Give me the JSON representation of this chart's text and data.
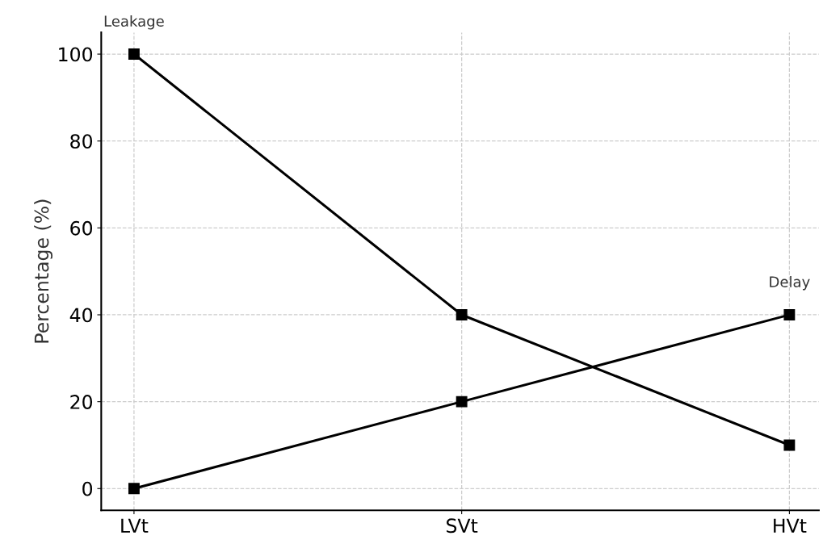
{
  "chart_data": {
    "type": "line",
    "ylabel": "Percentage (%)",
    "categories": [
      "LVt",
      "SVt",
      "HVt"
    ],
    "series": [
      {
        "name": "Leakage",
        "color": "#000000",
        "values": [
          100,
          40,
          10
        ]
      },
      {
        "name": "Delay",
        "color": "#000000",
        "values": [
          0,
          20,
          40
        ]
      }
    ],
    "ylim": [
      -5,
      105
    ],
    "yticks": [
      0,
      20,
      40,
      60,
      80,
      100
    ],
    "grid": true,
    "marker": "square",
    "line_style": "solid"
  }
}
